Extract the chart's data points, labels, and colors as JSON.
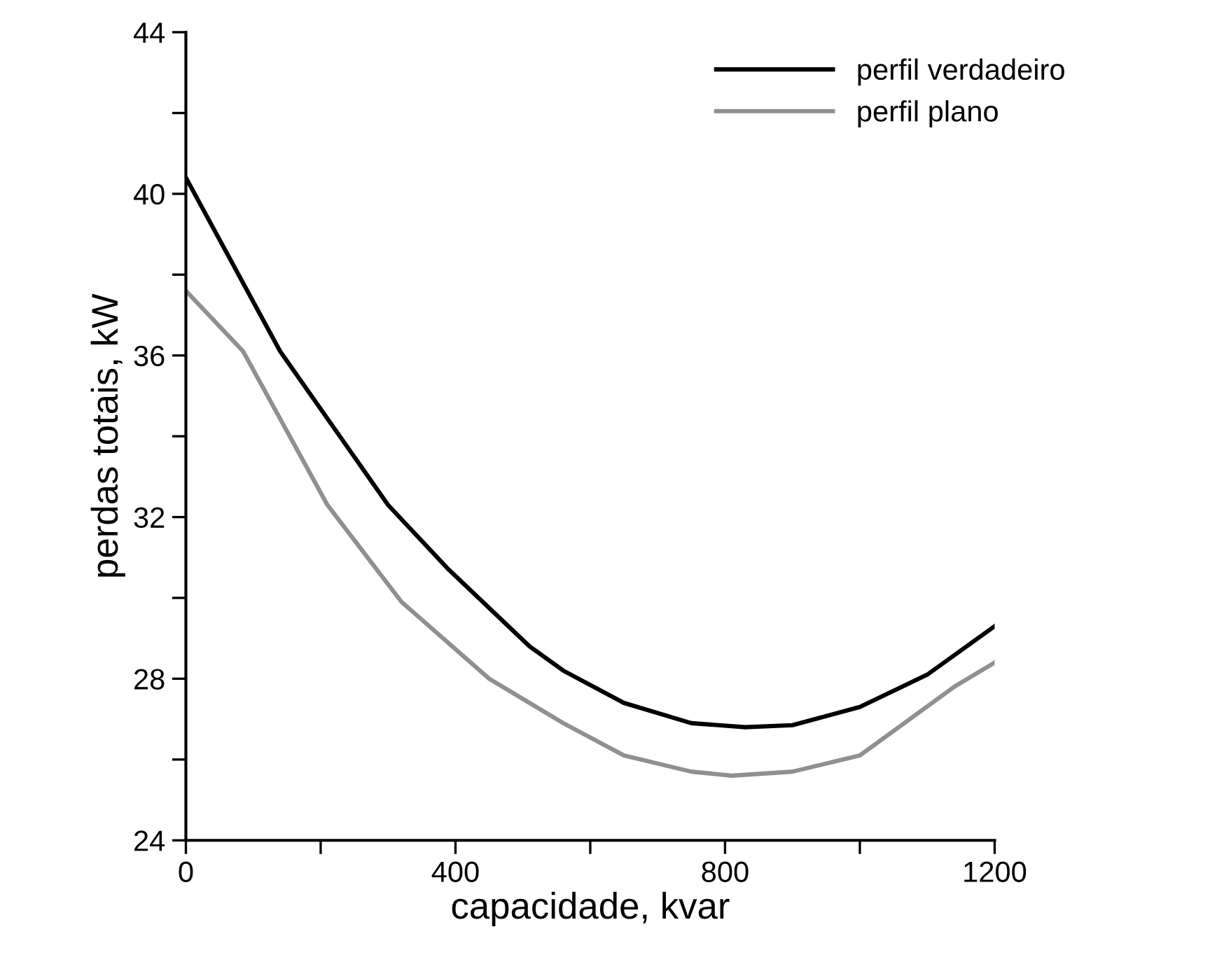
{
  "chart_data": {
    "type": "line",
    "xlabel": "capacidade, kvar",
    "ylabel": "perdas totais, kW",
    "xlim": [
      0,
      1200
    ],
    "xticks": [
      0,
      {
        "value": 200,
        "label": null
      },
      400,
      {
        "value": 600,
        "label": null
      },
      800,
      {
        "value": 1000,
        "label": null
      },
      1200
    ],
    "ylim": [
      24,
      44
    ],
    "yticks": [
      24,
      {
        "value": 26,
        "label": null
      },
      28,
      {
        "value": 30,
        "label": null
      },
      32,
      {
        "value": 34,
        "label": null
      },
      36,
      {
        "value": 38,
        "label": null
      },
      40,
      {
        "value": 42,
        "label": null
      },
      44
    ],
    "grid": false,
    "legend": "top right",
    "marker": "none",
    "line_style": "solid",
    "series": [
      {
        "name": "perfil verdadeiro",
        "color": "#000000",
        "x": [
          0,
          140,
          300,
          390,
          510,
          560,
          650,
          750,
          830,
          900,
          1000,
          1100,
          1200
        ],
        "values": [
          40.4,
          36.1,
          32.3,
          30.7,
          28.8,
          28.2,
          27.4,
          26.9,
          26.8,
          26.85,
          27.3,
          28.1,
          29.3
        ]
      },
      {
        "name": "perfil plano",
        "color": "#909090",
        "x": [
          0,
          85,
          210,
          320,
          450,
          560,
          650,
          750,
          810,
          900,
          1000,
          1140,
          1200
        ],
        "values": [
          37.6,
          36.1,
          32.3,
          29.9,
          28.0,
          26.9,
          26.1,
          25.7,
          25.6,
          25.7,
          26.1,
          27.8,
          28.4
        ]
      }
    ]
  }
}
